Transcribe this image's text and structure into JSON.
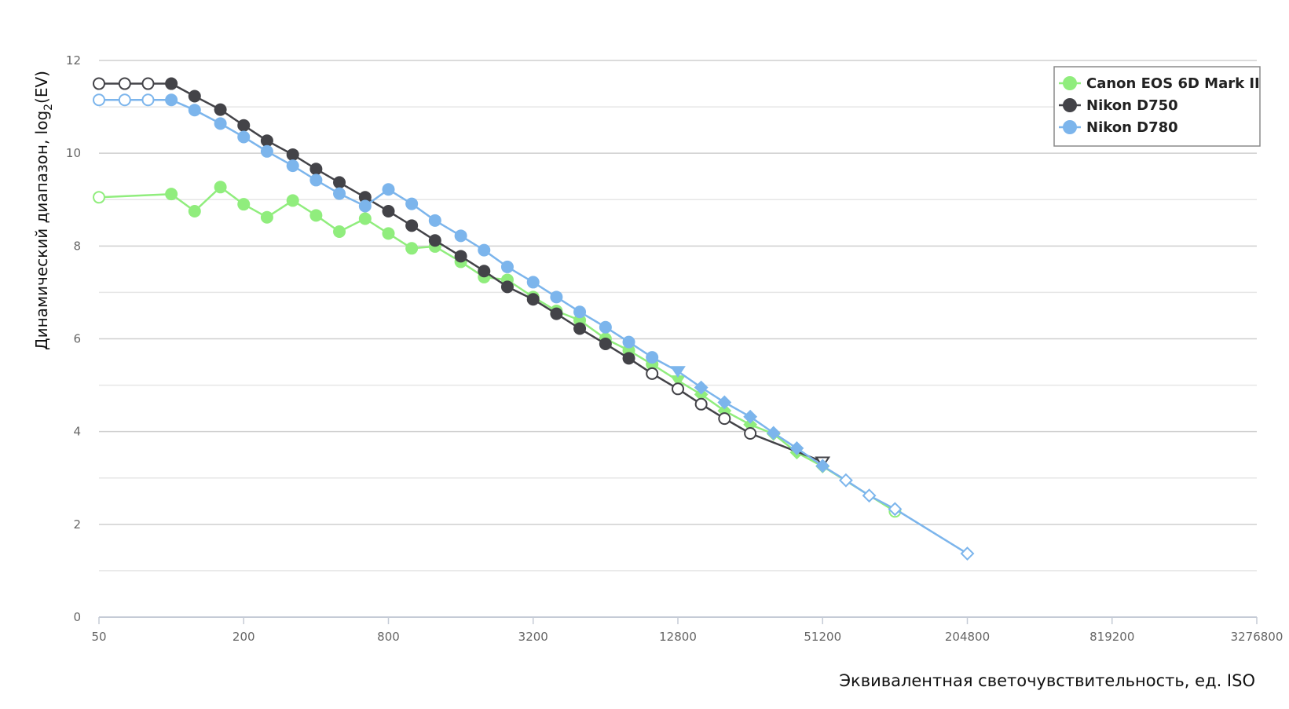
{
  "chart_data": {
    "type": "line",
    "xlabel": "Эквивалентная светочувствительность, ед. ISO",
    "ylabel_prefix": "Динамический диапазон, log",
    "ylabel_sub": "2",
    "ylabel_suffix": "(EV)",
    "x_scale": "log2",
    "xlim": [
      50,
      3276800
    ],
    "ylim": [
      0,
      12
    ],
    "x_ticks": [
      50,
      200,
      800,
      3200,
      12800,
      51200,
      204800,
      819200,
      3276800
    ],
    "x_tick_labels": [
      "50",
      "200",
      "800",
      "3200",
      "12800",
      "51200",
      "204800",
      "819200",
      "3276800"
    ],
    "y_ticks": [
      0,
      2,
      4,
      6,
      8,
      10,
      12
    ],
    "y_tick_labels": [
      "0",
      "2",
      "4",
      "6",
      "8",
      "10",
      "12"
    ],
    "grid": "horizontal",
    "legend_position": "top-right",
    "series": [
      {
        "name": "Canon EOS 6D Mark II",
        "color": "#90ed7d",
        "points": [
          {
            "x": 50,
            "y": 9.05,
            "m": "open"
          },
          {
            "x": 100,
            "y": 9.12
          },
          {
            "x": 125,
            "y": 8.75
          },
          {
            "x": 160,
            "y": 9.27
          },
          {
            "x": 200,
            "y": 8.9
          },
          {
            "x": 250,
            "y": 8.62
          },
          {
            "x": 320,
            "y": 8.98
          },
          {
            "x": 400,
            "y": 8.66
          },
          {
            "x": 500,
            "y": 8.31
          },
          {
            "x": 640,
            "y": 8.59
          },
          {
            "x": 800,
            "y": 8.27
          },
          {
            "x": 1000,
            "y": 7.95
          },
          {
            "x": 1250,
            "y": 7.99
          },
          {
            "x": 1600,
            "y": 7.66
          },
          {
            "x": 2000,
            "y": 7.33
          },
          {
            "x": 2500,
            "y": 7.27
          },
          {
            "x": 3200,
            "y": 6.9
          },
          {
            "x": 4000,
            "y": 6.6
          },
          {
            "x": 5000,
            "y": 6.4
          },
          {
            "x": 6400,
            "y": 6.0
          },
          {
            "x": 8000,
            "y": 5.75
          },
          {
            "x": 10000,
            "y": 5.45
          },
          {
            "x": 12800,
            "y": 5.1,
            "m": "tri"
          },
          {
            "x": 16000,
            "y": 4.8,
            "m": "diamond"
          },
          {
            "x": 20000,
            "y": 4.45,
            "m": "diamond"
          },
          {
            "x": 25600,
            "y": 4.15,
            "m": "diamond"
          },
          {
            "x": 32000,
            "y": 3.95,
            "m": "diamond"
          },
          {
            "x": 40000,
            "y": 3.55,
            "m": "diamond"
          },
          {
            "x": 51200,
            "y": 3.25,
            "m": "diamond"
          },
          {
            "x": 102400,
            "y": 2.28,
            "m": "open"
          }
        ]
      },
      {
        "name": "Nikon D750",
        "color": "#434348",
        "points": [
          {
            "x": 50,
            "y": 11.5,
            "m": "open"
          },
          {
            "x": 64,
            "y": 11.5,
            "m": "open"
          },
          {
            "x": 80,
            "y": 11.5,
            "m": "open"
          },
          {
            "x": 100,
            "y": 11.5
          },
          {
            "x": 125,
            "y": 11.23
          },
          {
            "x": 160,
            "y": 10.94
          },
          {
            "x": 200,
            "y": 10.6
          },
          {
            "x": 250,
            "y": 10.27
          },
          {
            "x": 320,
            "y": 9.97
          },
          {
            "x": 400,
            "y": 9.66
          },
          {
            "x": 500,
            "y": 9.37
          },
          {
            "x": 640,
            "y": 9.05
          },
          {
            "x": 800,
            "y": 8.75
          },
          {
            "x": 1000,
            "y": 8.44
          },
          {
            "x": 1250,
            "y": 8.12
          },
          {
            "x": 1600,
            "y": 7.78
          },
          {
            "x": 2000,
            "y": 7.46
          },
          {
            "x": 2500,
            "y": 7.12
          },
          {
            "x": 3200,
            "y": 6.85
          },
          {
            "x": 4000,
            "y": 6.54
          },
          {
            "x": 5000,
            "y": 6.22
          },
          {
            "x": 6400,
            "y": 5.89
          },
          {
            "x": 8000,
            "y": 5.58
          },
          {
            "x": 10000,
            "y": 5.25,
            "m": "open"
          },
          {
            "x": 12800,
            "y": 4.92,
            "m": "open"
          },
          {
            "x": 16000,
            "y": 4.59,
            "m": "open"
          },
          {
            "x": 20000,
            "y": 4.28,
            "m": "open"
          },
          {
            "x": 25600,
            "y": 3.96,
            "m": "open"
          },
          {
            "x": 51200,
            "y": 3.35,
            "m": "tri-open"
          }
        ]
      },
      {
        "name": "Nikon D780",
        "color": "#7cb5ec",
        "points": [
          {
            "x": 50,
            "y": 11.15,
            "m": "open"
          },
          {
            "x": 64,
            "y": 11.15,
            "m": "open"
          },
          {
            "x": 80,
            "y": 11.15,
            "m": "open"
          },
          {
            "x": 100,
            "y": 11.15
          },
          {
            "x": 125,
            "y": 10.93
          },
          {
            "x": 160,
            "y": 10.64
          },
          {
            "x": 200,
            "y": 10.35
          },
          {
            "x": 250,
            "y": 10.04
          },
          {
            "x": 320,
            "y": 9.73
          },
          {
            "x": 400,
            "y": 9.42
          },
          {
            "x": 500,
            "y": 9.13
          },
          {
            "x": 640,
            "y": 8.86
          },
          {
            "x": 800,
            "y": 9.22
          },
          {
            "x": 1000,
            "y": 8.91
          },
          {
            "x": 1250,
            "y": 8.55
          },
          {
            "x": 1600,
            "y": 8.22
          },
          {
            "x": 2000,
            "y": 7.91
          },
          {
            "x": 2500,
            "y": 7.55
          },
          {
            "x": 3200,
            "y": 7.22
          },
          {
            "x": 4000,
            "y": 6.9
          },
          {
            "x": 5000,
            "y": 6.58
          },
          {
            "x": 6400,
            "y": 6.25
          },
          {
            "x": 8000,
            "y": 5.93
          },
          {
            "x": 10000,
            "y": 5.6
          },
          {
            "x": 12800,
            "y": 5.3,
            "m": "tri"
          },
          {
            "x": 16000,
            "y": 4.95,
            "m": "diamond"
          },
          {
            "x": 20000,
            "y": 4.63,
            "m": "diamond"
          },
          {
            "x": 25600,
            "y": 4.32,
            "m": "diamond"
          },
          {
            "x": 32000,
            "y": 3.97,
            "m": "diamond"
          },
          {
            "x": 40000,
            "y": 3.64,
            "m": "diamond"
          },
          {
            "x": 51200,
            "y": 3.26,
            "m": "diamond"
          },
          {
            "x": 64000,
            "y": 2.95,
            "m": "diamond-open"
          },
          {
            "x": 80000,
            "y": 2.62,
            "m": "diamond-open"
          },
          {
            "x": 102400,
            "y": 2.33,
            "m": "diamond-open"
          },
          {
            "x": 204800,
            "y": 1.37,
            "m": "diamond-open"
          }
        ]
      }
    ]
  }
}
